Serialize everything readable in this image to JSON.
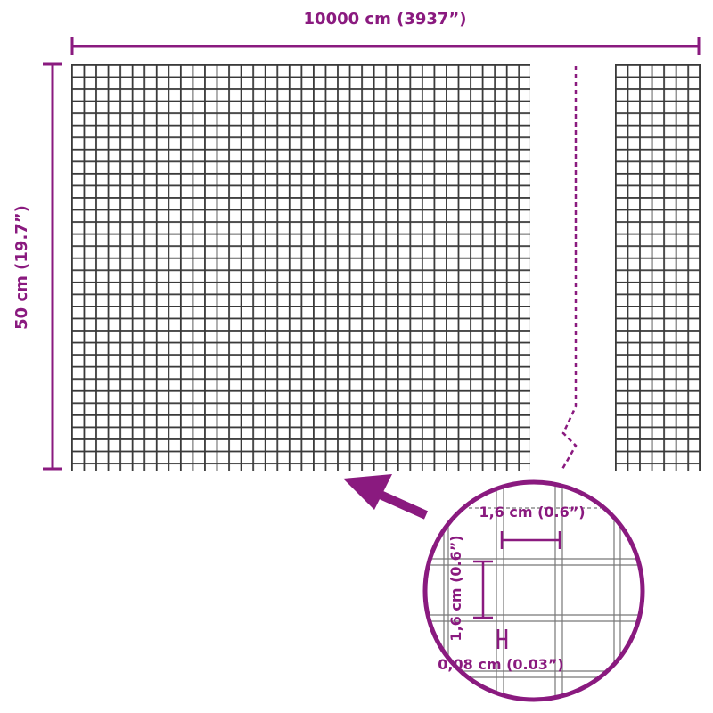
{
  "dimensions": {
    "length_label": "10000 cm (3937”)",
    "height_label": "50 cm (19.7”)"
  },
  "detail": {
    "mesh_width_label": "1,6 cm (0.6”)",
    "mesh_height_label": "1,6 cm (0.6”)",
    "wire_thickness_label": "0,08 cm (0.03”)"
  },
  "colors": {
    "accent": "#8a1a7f",
    "mesh": "#3a3a3a"
  }
}
